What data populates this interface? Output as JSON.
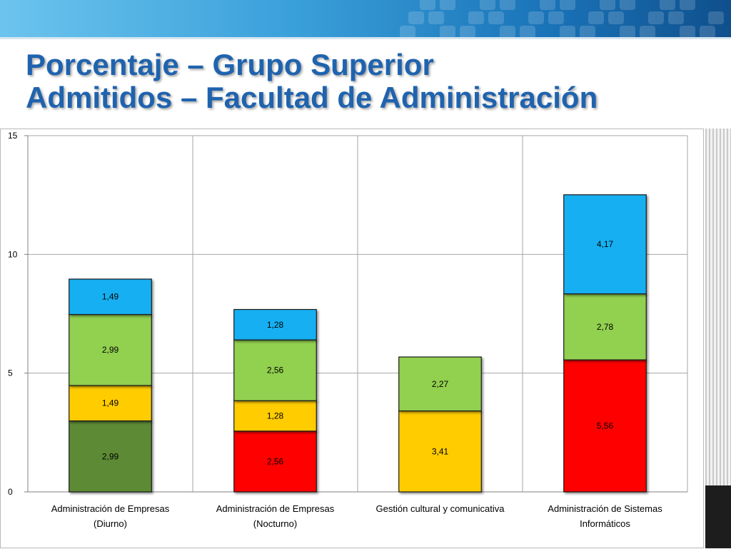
{
  "title": {
    "line1": "Porcentaje – Grupo Superior",
    "line2": "Admitidos – Facultad de Administración"
  },
  "colors": {
    "title": "#1f63ae",
    "dark_green": "#5b8a34",
    "yellow": "#ffcc00",
    "light_green": "#92d050",
    "blue": "#12b0f2",
    "red": "#ff0000"
  },
  "chart_data": {
    "type": "bar",
    "stacked": true,
    "categories": [
      [
        "Administración de Empresas",
        "(Diurno)"
      ],
      [
        "Administración de Empresas",
        "(Nocturno)"
      ],
      [
        "Gestión cultural y comunicativa"
      ],
      [
        "Administración de Sistemas",
        "Informáticos"
      ]
    ],
    "stacks": [
      [
        {
          "value": 2.99,
          "label": "2,99",
          "color": "#5b8a34"
        },
        {
          "value": 1.49,
          "label": "1,49",
          "color": "#ffcc00"
        },
        {
          "value": 2.99,
          "label": "2,99",
          "color": "#92d050"
        },
        {
          "value": 1.49,
          "label": "1,49",
          "color": "#12b0f2"
        }
      ],
      [
        {
          "value": 2.56,
          "label": "2,56",
          "color": "#ff0000"
        },
        {
          "value": 1.28,
          "label": "1,28",
          "color": "#ffcc00"
        },
        {
          "value": 2.56,
          "label": "2,56",
          "color": "#92d050"
        },
        {
          "value": 1.28,
          "label": "1,28",
          "color": "#12b0f2"
        }
      ],
      [
        {
          "value": 3.41,
          "label": "3,41",
          "color": "#ffcc00"
        },
        {
          "value": 2.27,
          "label": "2,27",
          "color": "#92d050"
        }
      ],
      [
        {
          "value": 5.56,
          "label": "5,56",
          "color": "#ff0000"
        },
        {
          "value": 2.78,
          "label": "2,78",
          "color": "#92d050"
        },
        {
          "value": 4.17,
          "label": "4,17",
          "color": "#12b0f2"
        }
      ]
    ],
    "yticks": [
      0,
      5,
      10,
      15
    ],
    "ylim": [
      0,
      15
    ],
    "grid": true,
    "legend": "none"
  }
}
